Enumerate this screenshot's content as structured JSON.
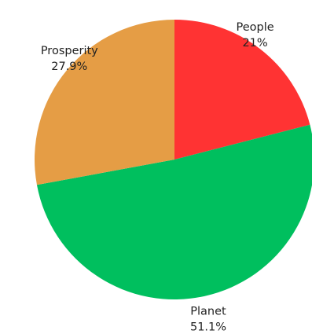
{
  "chart_data": {
    "type": "pie",
    "slices": [
      {
        "label": "People",
        "percent_label": "21%",
        "value": 21.0,
        "color": "#ff3333"
      },
      {
        "label": "Planet",
        "percent_label": "51.1%",
        "value": 51.1,
        "color": "#00bf5e"
      },
      {
        "label": "Prosperity",
        "percent_label": "27.9%",
        "value": 27.9,
        "color": "#e59d45"
      }
    ],
    "start_angle_deg": 0,
    "direction": "clockwise",
    "legend": "none"
  }
}
